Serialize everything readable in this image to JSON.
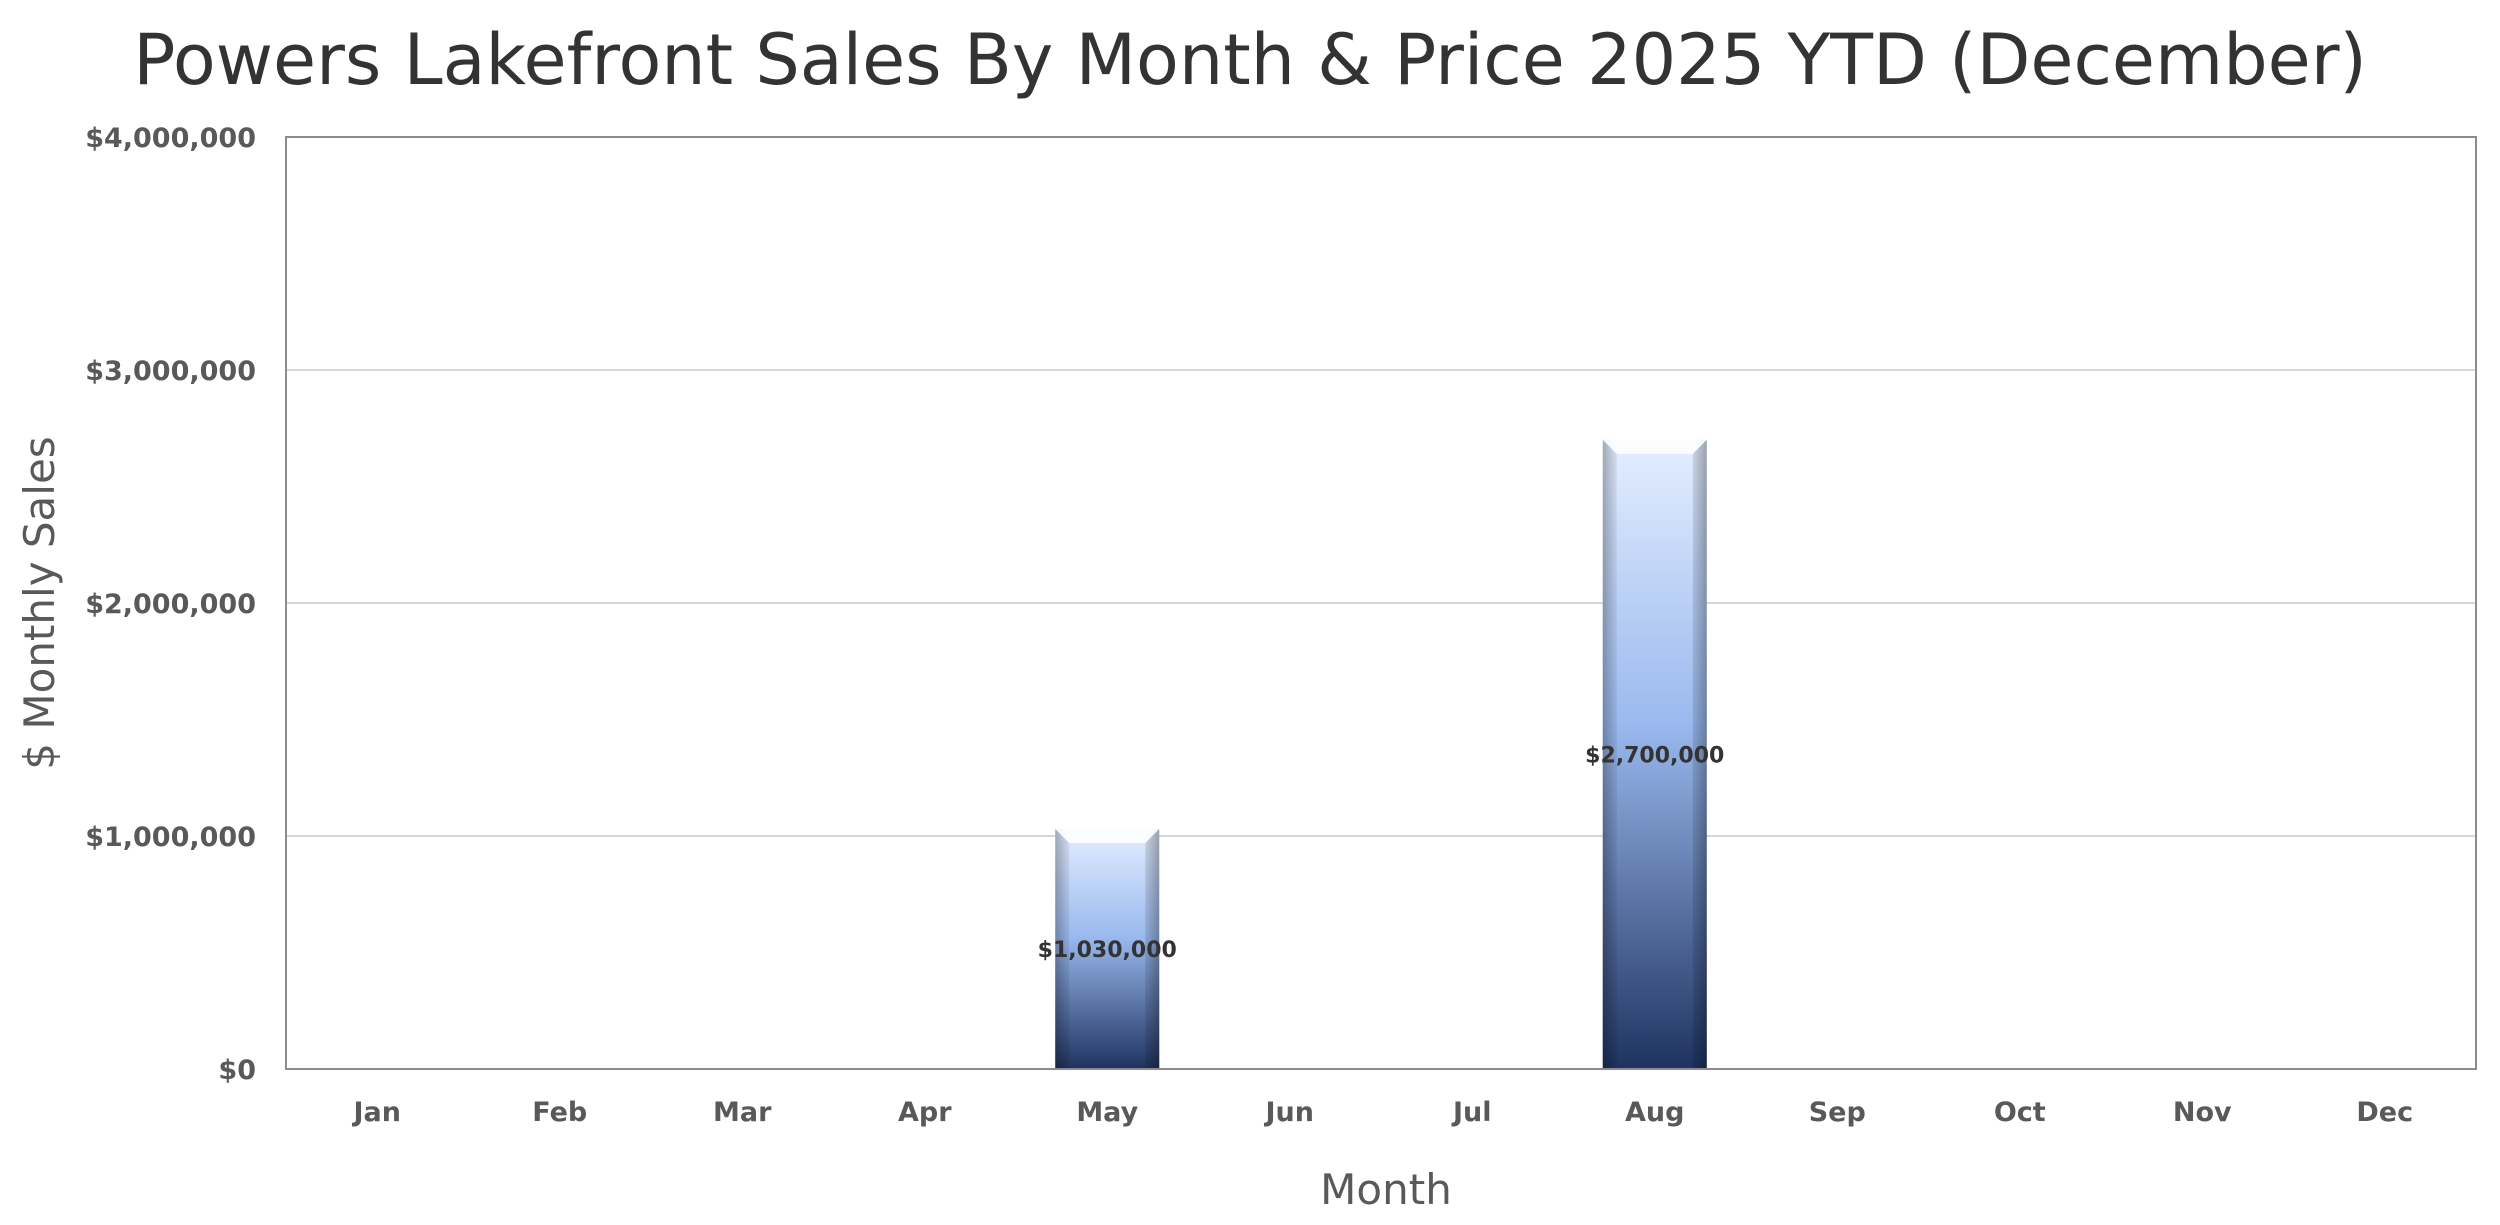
{
  "chart_data": {
    "type": "bar",
    "title": "Powers Lakefront Sales By Month & Price 2025 YTD (December)",
    "xlabel": "Month",
    "ylabel": "$ Monthly Sales",
    "categories": [
      "Jan",
      "Feb",
      "Mar",
      "Apr",
      "May",
      "Jun",
      "Jul",
      "Aug",
      "Sep",
      "Oct",
      "Nov",
      "Dec"
    ],
    "values": [
      0,
      0,
      0,
      0,
      1030000,
      0,
      0,
      2700000,
      0,
      0,
      0,
      0
    ],
    "data_labels": [
      "",
      "",
      "",
      "",
      "$1,030,000",
      "",
      "",
      "$2,700,000",
      "",
      "",
      "",
      ""
    ],
    "ylim": [
      0,
      4000000
    ],
    "yticks": [
      0,
      1000000,
      2000000,
      3000000,
      4000000
    ],
    "ytick_labels": [
      "$0",
      "$1,000,000",
      "$2,000,000",
      "$3,000,000",
      "$4,000,000"
    ],
    "grid": true,
    "legend": "none",
    "colors": {
      "bar_top": "#e4eeff",
      "bar_mid": "#9ab9ee",
      "bar_bottom": "#1f3360",
      "title": "#333333",
      "axis_text": "#595959",
      "gridline": "#c8c8c8"
    }
  }
}
